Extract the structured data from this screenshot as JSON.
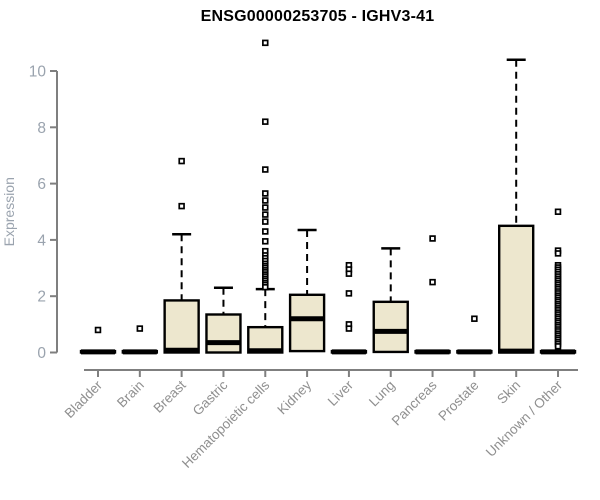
{
  "chart_data": {
    "type": "boxplot",
    "title": "ENSG00000253705 - IGHV3-41",
    "ylabel": "Expression",
    "xlabel": "",
    "ylim": [
      0,
      10
    ],
    "yticks": [
      0,
      2,
      4,
      6,
      8,
      10
    ],
    "grid": false,
    "legend": "none",
    "categories": [
      "Bladder",
      "Brain",
      "Breast",
      "Gastric",
      "Hematopoietic cells",
      "Kidney",
      "Liver",
      "Lung",
      "Pancreas",
      "Prostate",
      "Skin",
      "Unknown / Other"
    ],
    "series": [
      {
        "label": "Bladder",
        "q1": 0,
        "median": 0.02,
        "q3": 0.05,
        "whisker_low": 0,
        "whisker_high": 0.05,
        "outliers": [
          0.8
        ]
      },
      {
        "label": "Brain",
        "q1": 0,
        "median": 0.02,
        "q3": 0.05,
        "whisker_low": 0,
        "whisker_high": 0.05,
        "outliers": [
          0.85
        ]
      },
      {
        "label": "Breast",
        "q1": 0,
        "median": 0.08,
        "q3": 1.85,
        "whisker_low": 0,
        "whisker_high": 4.2,
        "outliers": [
          6.8,
          5.2
        ]
      },
      {
        "label": "Gastric",
        "q1": 0,
        "median": 0.35,
        "q3": 1.35,
        "whisker_low": 0,
        "whisker_high": 2.3,
        "outliers": []
      },
      {
        "label": "Hematopoietic cells",
        "q1": 0,
        "median": 0.06,
        "q3": 0.9,
        "whisker_low": 0,
        "whisker_high": 2.25,
        "outliers": [
          11,
          8.2,
          6.5,
          5.65,
          5.4,
          5.15,
          4.9,
          4.65,
          4.3,
          3.95,
          3.6,
          3.45,
          3.35,
          3.25,
          3.15,
          3.07,
          3.0,
          2.92,
          2.85,
          2.77,
          2.7,
          2.62,
          2.55,
          2.47,
          2.4,
          2.32
        ]
      },
      {
        "label": "Kidney",
        "q1": 0.05,
        "median": 1.2,
        "q3": 2.05,
        "whisker_low": 0.05,
        "whisker_high": 4.35,
        "outliers": []
      },
      {
        "label": "Liver",
        "q1": 0,
        "median": 0.02,
        "q3": 0.05,
        "whisker_low": 0,
        "whisker_high": 0.05,
        "outliers": [
          3.1,
          2.95,
          2.8,
          2.1,
          1.0,
          0.85
        ]
      },
      {
        "label": "Lung",
        "q1": 0.02,
        "median": 0.75,
        "q3": 1.8,
        "whisker_low": 0.02,
        "whisker_high": 3.7,
        "outliers": []
      },
      {
        "label": "Pancreas",
        "q1": 0,
        "median": 0.02,
        "q3": 0.05,
        "whisker_low": 0,
        "whisker_high": 0.05,
        "outliers": [
          4.05,
          2.5
        ]
      },
      {
        "label": "Prostate",
        "q1": 0,
        "median": 0.02,
        "q3": 0.05,
        "whisker_low": 0,
        "whisker_high": 0.05,
        "outliers": [
          1.2
        ]
      },
      {
        "label": "Skin",
        "q1": 0,
        "median": 0.05,
        "q3": 4.5,
        "whisker_low": 0,
        "whisker_high": 10.4,
        "outliers": []
      },
      {
        "label": "Unknown / Other",
        "q1": 0,
        "median": 0.02,
        "q3": 0.05,
        "whisker_low": 0,
        "whisker_high": 0.05,
        "outliers": [
          5.0,
          3.62,
          3.52,
          3.1,
          3.02,
          2.94,
          2.86,
          2.78,
          2.7,
          2.62,
          2.55,
          2.47,
          2.4,
          2.32,
          2.25,
          2.17,
          2.1,
          2.02,
          1.95,
          1.87,
          1.8,
          1.72,
          1.65,
          1.57,
          1.5,
          1.42,
          1.35,
          1.27,
          1.2,
          1.12,
          1.05,
          0.97,
          0.9,
          0.82,
          0.75,
          0.67,
          0.6,
          0.52,
          0.45,
          0.37,
          0.3,
          0.22
        ]
      }
    ],
    "colors": {
      "box_fill": "#EDE7CE",
      "box_stroke": "#000000",
      "whisker": "#000000",
      "median": "#000000",
      "outlier_stroke": "#000000",
      "outlier_fill": "#ffffff",
      "axis": "#7f7f7f",
      "y_tick_text": "#9aa3ae",
      "x_tick_text": "#8f8f8f",
      "axis_label_text": "#9aa3ae",
      "title": "#000000",
      "background": "#ffffff"
    }
  }
}
